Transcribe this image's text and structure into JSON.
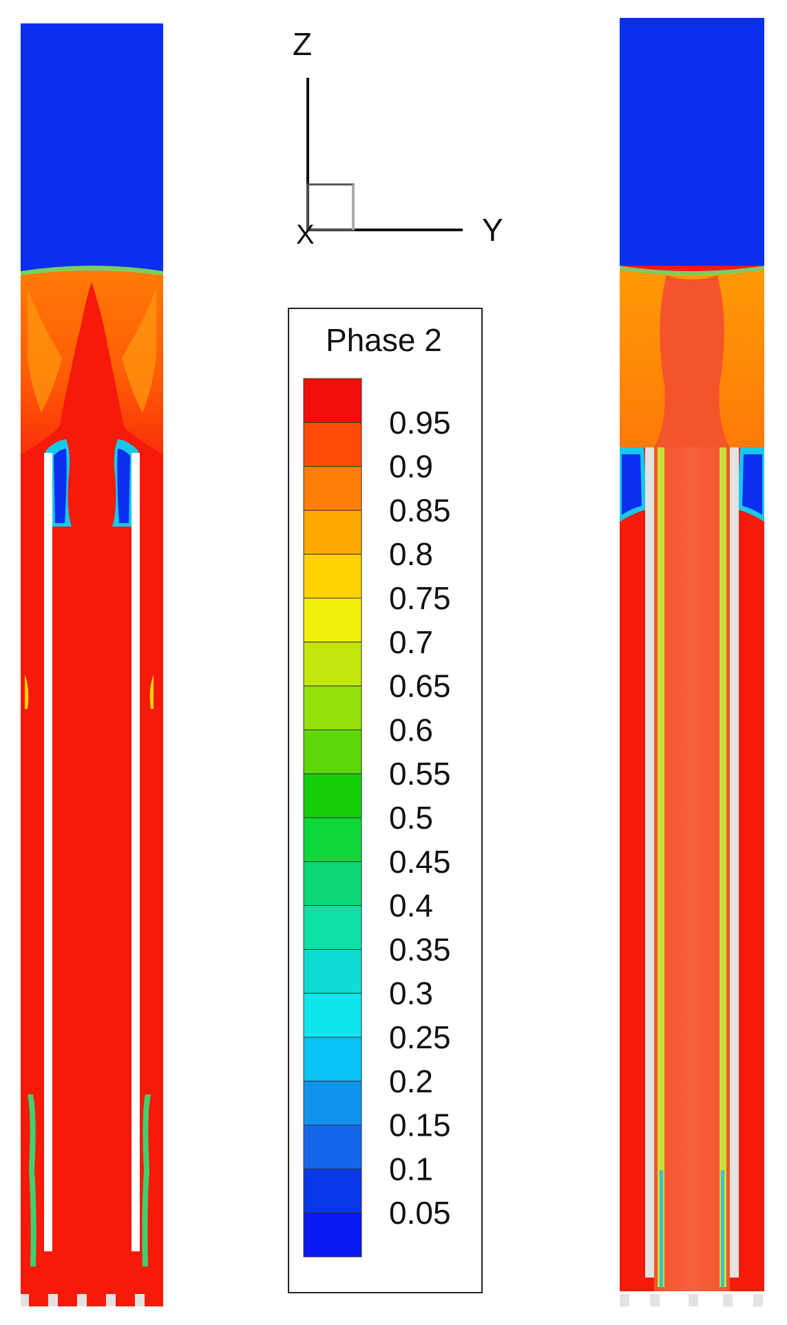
{
  "axes": {
    "z_label": "Z",
    "y_label": "Y",
    "x_label": "X"
  },
  "legend": {
    "title": "Phase 2",
    "levels": [
      {
        "value": "0.95",
        "color": "#f20f0a"
      },
      {
        "value": "0.9",
        "color": "#ff4b06"
      },
      {
        "value": "0.85",
        "color": "#ff7e0a"
      },
      {
        "value": "0.8",
        "color": "#ffa800"
      },
      {
        "value": "0.75",
        "color": "#ffd100"
      },
      {
        "value": "0.7",
        "color": "#f2ee0c"
      },
      {
        "value": "0.65",
        "color": "#c3e70d"
      },
      {
        "value": "0.6",
        "color": "#93e10a"
      },
      {
        "value": "0.55",
        "color": "#5ed708"
      },
      {
        "value": "0.5",
        "color": "#14cf08"
      },
      {
        "value": "0.45",
        "color": "#0ed73c"
      },
      {
        "value": "0.4",
        "color": "#0dd776"
      },
      {
        "value": "0.35",
        "color": "#0ee0a5"
      },
      {
        "value": "0.3",
        "color": "#0fdcd3"
      },
      {
        "value": "0.25",
        "color": "#0de6ef"
      },
      {
        "value": "0.2",
        "color": "#0bc2f4"
      },
      {
        "value": "0.15",
        "color": "#1093ef"
      },
      {
        "value": "0.1",
        "color": "#1666ec"
      },
      {
        "value": "0.05",
        "color": "#0838e8"
      },
      {
        "value": "",
        "color": "#0a18f2"
      }
    ]
  },
  "colors": {
    "phase_high": "#f51a0a",
    "phase_low": "#0b2ff0",
    "wall": "#ffffff",
    "wall_gray": "#e2e2e2"
  }
}
